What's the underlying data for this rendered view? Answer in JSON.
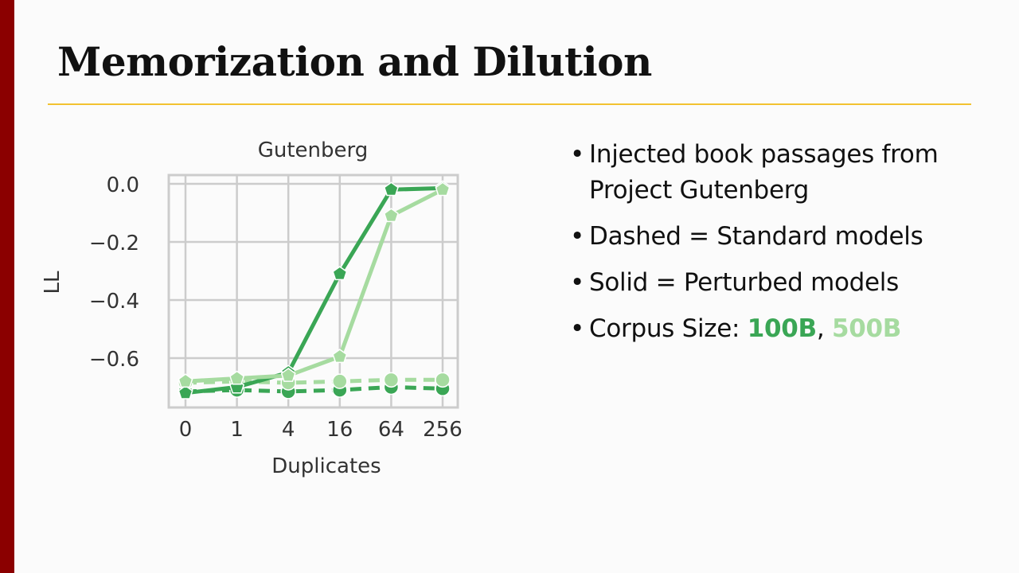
{
  "slide": {
    "title": "Memorization and Dilution",
    "bullets": [
      {
        "text": "Injected book passages from Project Gutenberg"
      },
      {
        "text": "Dashed = Standard models"
      },
      {
        "text": "Solid = Perturbed models"
      }
    ],
    "corpus": {
      "prefix": "Corpus Size: ",
      "size1": "100B",
      "sep": ", ",
      "size2": "500B",
      "color1": "#3aa655",
      "color2": "#a6dba0"
    },
    "accent_bar_color": "#8b0000",
    "rule_color": "#f2c230"
  },
  "chart_data": {
    "type": "line",
    "title": "Gutenberg",
    "xlabel": "Duplicates",
    "ylabel": "LL",
    "categories": [
      "0",
      "1",
      "4",
      "16",
      "64",
      "256"
    ],
    "yticks": [
      "0.0",
      "−0.2",
      "−0.4",
      "−0.6"
    ],
    "ytick_values": [
      0.0,
      -0.2,
      -0.4,
      -0.6
    ],
    "ylim": [
      -0.77,
      0.03
    ],
    "grid": true,
    "series": [
      {
        "corpus": "100B",
        "style": "solid",
        "marker": "pentagon",
        "color": "#3aa655",
        "values": [
          -0.72,
          -0.7,
          -0.65,
          -0.31,
          -0.02,
          -0.015
        ]
      },
      {
        "corpus": "500B",
        "style": "solid",
        "marker": "pentagon",
        "color": "#a6dba0",
        "values": [
          -0.68,
          -0.67,
          -0.66,
          -0.595,
          -0.11,
          -0.02
        ]
      },
      {
        "corpus": "100B",
        "style": "dashed",
        "marker": "circle",
        "color": "#3aa655",
        "values": [
          -0.715,
          -0.71,
          -0.715,
          -0.71,
          -0.7,
          -0.705
        ]
      },
      {
        "corpus": "500B",
        "style": "dashed",
        "marker": "circle",
        "color": "#a6dba0",
        "values": [
          -0.685,
          -0.68,
          -0.685,
          -0.68,
          -0.675,
          -0.675
        ]
      }
    ]
  }
}
